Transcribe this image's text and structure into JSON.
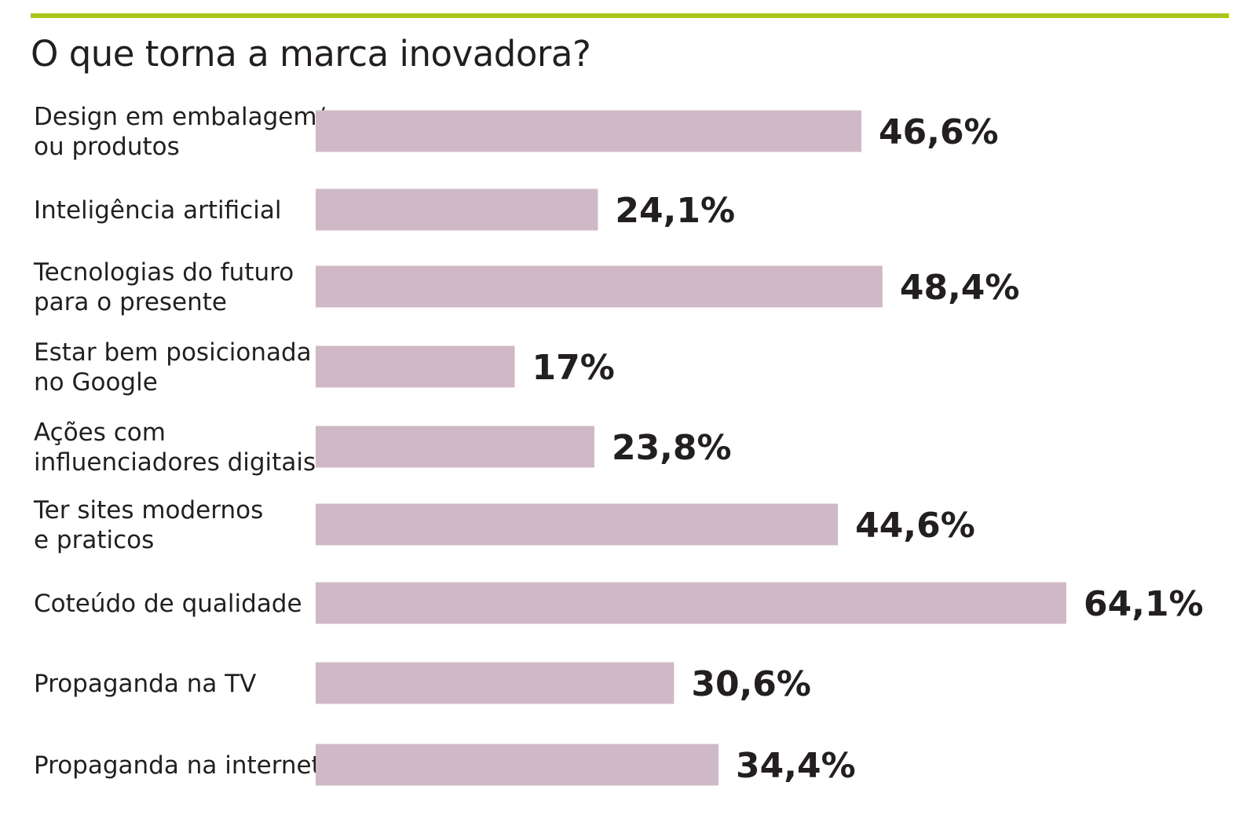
{
  "colors": {
    "accent_rule": "#a8c71c",
    "bar": "#d0b9c6",
    "text": "#231f20"
  },
  "chart_data": {
    "type": "bar",
    "orientation": "horizontal",
    "title": "O que torna a marca inovadora?",
    "categories": [
      [
        "Design em embalagem/",
        "ou produtos"
      ],
      [
        "Inteligência artificial"
      ],
      [
        "Tecnologias do futuro",
        "para o presente"
      ],
      [
        "Estar bem posicionada",
        "no Google"
      ],
      [
        "Ações com",
        "influenciadores digitais"
      ],
      [
        "Ter sites modernos",
        "e praticos"
      ],
      [
        "Coteúdo de qualidade"
      ],
      [
        "Propaganda na TV"
      ],
      [
        "Propaganda na internet"
      ]
    ],
    "values": [
      46.6,
      24.1,
      48.4,
      17,
      23.8,
      44.6,
      64.1,
      30.6,
      34.4
    ],
    "value_labels": [
      "46,6%",
      "24,1%",
      "48,4%",
      "17%",
      "23,8%",
      "44,6%",
      "64,1%",
      "30,6%",
      "34,4%"
    ],
    "xlim": [
      0,
      64.1
    ],
    "grid": false,
    "legend": "none"
  }
}
